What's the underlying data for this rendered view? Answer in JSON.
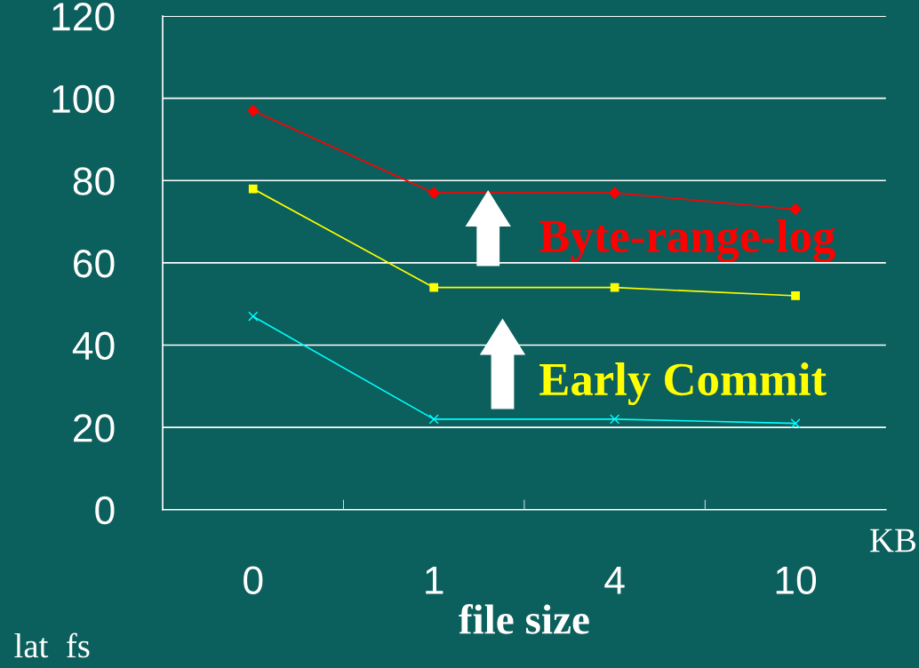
{
  "chart_data": {
    "type": "line",
    "xlabel": "file size",
    "categories": [
      "0",
      "1",
      "4",
      "10"
    ],
    "series": [
      {
        "name": "Byte-range-log",
        "color": "#ff0000",
        "marker": "diamond",
        "values": [
          97,
          77,
          77,
          73
        ]
      },
      {
        "name": "Early Commit",
        "color": "#ffff00",
        "marker": "square",
        "values": [
          78,
          54,
          54,
          52
        ]
      },
      {
        "color": "#00ffff",
        "marker": "cross",
        "values": [
          47,
          22,
          22,
          21
        ]
      }
    ],
    "ylim": [
      0,
      120
    ],
    "yticks": [
      0,
      20,
      40,
      60,
      80,
      100,
      120
    ],
    "grid": "y",
    "annotations": [
      "KB",
      "lat  fs"
    ]
  }
}
